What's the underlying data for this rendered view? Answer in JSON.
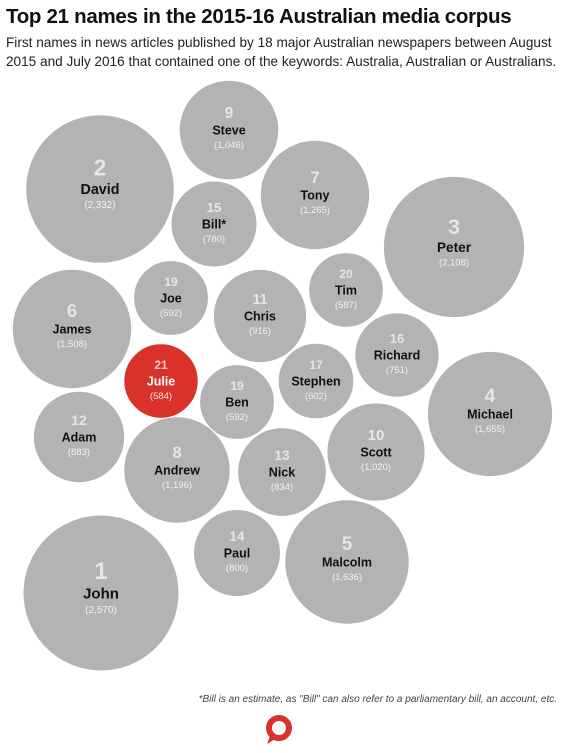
{
  "title": "Top 21 names in the 2015-16 Australian media corpus",
  "subtitle": "First names in news articles published by 18 major Australian newspapers between August 2015 and July 2016 that contained one of the keywords: Australia, Australian or Australians.",
  "footnote": "*Bill is an estimate, as \"Bill\" can also refer to a parliamentary bill, an account, etc.",
  "colors": {
    "bubble": "#b3b3b3",
    "highlight": "#d9322a",
    "rank": "#e6e6e6",
    "value": "#f2f2f2",
    "name": "#111111",
    "logo": "#d9322a"
  },
  "logo_icon": "speech-bubble-logo-icon",
  "chart_data": {
    "type": "bubble",
    "highlight": "Julie",
    "items": [
      {
        "rank": "1",
        "name": "John",
        "value": 2570,
        "value_label": "(2,570)"
      },
      {
        "rank": "2",
        "name": "David",
        "value": 2332,
        "value_label": "(2,332)"
      },
      {
        "rank": "3",
        "name": "Peter",
        "value": 2108,
        "value_label": "(2,108)"
      },
      {
        "rank": "4",
        "name": "Michael",
        "value": 1655,
        "value_label": "(1,655)"
      },
      {
        "rank": "5",
        "name": "Malcolm",
        "value": 1636,
        "value_label": "(1,636)"
      },
      {
        "rank": "6",
        "name": "James",
        "value": 1508,
        "value_label": "(1,508)"
      },
      {
        "rank": "7",
        "name": "Tony",
        "value": 1265,
        "value_label": "(1,265)"
      },
      {
        "rank": "8",
        "name": "Andrew",
        "value": 1196,
        "value_label": "(1,196)"
      },
      {
        "rank": "9",
        "name": "Steve",
        "value": 1046,
        "value_label": "(1,046)"
      },
      {
        "rank": "10",
        "name": "Scott",
        "value": 1020,
        "value_label": "(1,020)"
      },
      {
        "rank": "11",
        "name": "Chris",
        "value": 916,
        "value_label": "(916)"
      },
      {
        "rank": "12",
        "name": "Adam",
        "value": 883,
        "value_label": "(883)"
      },
      {
        "rank": "13",
        "name": "Nick",
        "value": 834,
        "value_label": "(834)"
      },
      {
        "rank": "14",
        "name": "Paul",
        "value": 800,
        "value_label": "(800)"
      },
      {
        "rank": "15",
        "name": "Bill*",
        "value": 780,
        "value_label": "(780)"
      },
      {
        "rank": "16",
        "name": "Richard",
        "value": 751,
        "value_label": "(751)"
      },
      {
        "rank": "17",
        "name": "Stephen",
        "value": 602,
        "value_label": "(602)"
      },
      {
        "rank": "19",
        "name": "Joe",
        "value": 592,
        "value_label": "(592)"
      },
      {
        "rank": "19",
        "name": "Ben",
        "value": 592,
        "value_label": "(592)"
      },
      {
        "rank": "20",
        "name": "Tim",
        "value": 587,
        "value_label": "(587)"
      },
      {
        "rank": "21",
        "name": "Julie",
        "value": 584,
        "value_label": "(584)"
      }
    ]
  }
}
